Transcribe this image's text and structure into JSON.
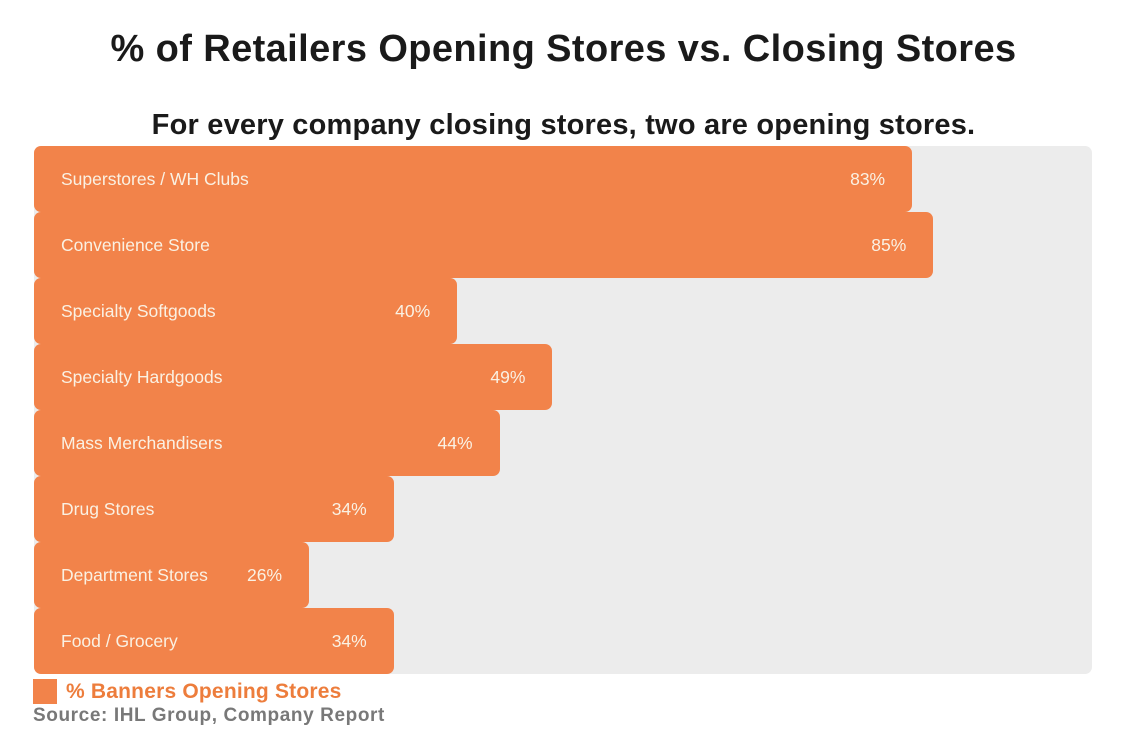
{
  "title": "% of Retailers Opening Stores vs. Closing Stores",
  "subtitle": "For every company closing stores, two are opening stores.",
  "legend": {
    "swatch_icon": "orange-square-swatch",
    "label": "% Banners Opening Stores"
  },
  "source": "Source: IHL Group, Company Report",
  "colors": {
    "bar": "#F2834A",
    "track_background": "#ECECEC",
    "bar_label_text": "#FAF1E3",
    "title_text": "#1A1A1A",
    "legend_text": "#ED7D3C",
    "source_text": "#787878",
    "page_background": "#FFFFFF"
  },
  "chart_data": {
    "type": "bar",
    "orientation": "horizontal",
    "title": "% of Retailers Opening Stores vs. Closing Stores",
    "subtitle": "For every company closing stores, two are opening stores.",
    "categories": [
      "Superstores / WH Clubs",
      "Convenience Store",
      "Specialty Softgoods",
      "Specialty Hardgoods",
      "Mass Merchandisers",
      "Drug Stores",
      "Department Stores",
      "Food / Grocery"
    ],
    "values": [
      83,
      85,
      40,
      49,
      44,
      34,
      26,
      34
    ],
    "value_suffix": "%",
    "xlabel": "",
    "ylabel": "",
    "xlim": [
      0,
      100
    ],
    "grid": false,
    "axis_ticks_visible": false,
    "data_labels": "inside-end",
    "category_labels": "inside-start",
    "legend_entries": [
      "% Banners Opening Stores"
    ],
    "legend_position": "bottom-left"
  }
}
